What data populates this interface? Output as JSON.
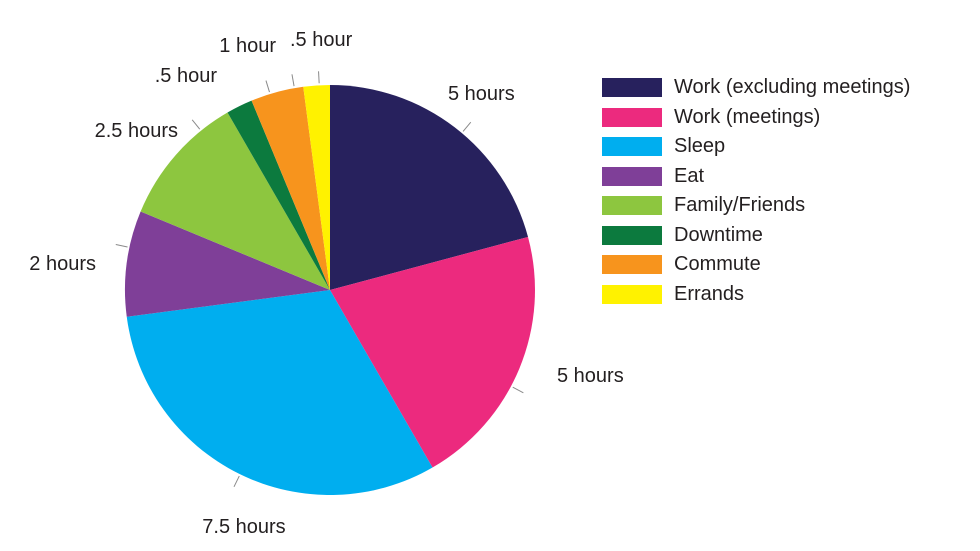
{
  "chart_data": {
    "type": "pie",
    "unit": "hours",
    "slices": [
      {
        "name": "Work (excluding meetings)",
        "value": 5,
        "label": "5 hours",
        "color": "#27215d"
      },
      {
        "name": "Work (meetings)",
        "value": 5,
        "label": "5 hours",
        "color": "#ec2a7e"
      },
      {
        "name": "Sleep",
        "value": 7.5,
        "label": "7.5 hours",
        "color": "#00aeef"
      },
      {
        "name": "Eat",
        "value": 2,
        "label": "2 hours",
        "color": "#7f3f98"
      },
      {
        "name": "Family/Friends",
        "value": 2.5,
        "label": "2.5 hours",
        "color": "#8dc63f"
      },
      {
        "name": "Downtime",
        "value": 0.5,
        "label": ".5 hour",
        "color": "#0c7a3e"
      },
      {
        "name": "Commute",
        "value": 1,
        "label": "1 hour",
        "color": "#f7941d"
      },
      {
        "name": "Errands",
        "value": 0.5,
        "label": ".5 hour",
        "color": "#fff200"
      }
    ],
    "legend_position": "right"
  }
}
